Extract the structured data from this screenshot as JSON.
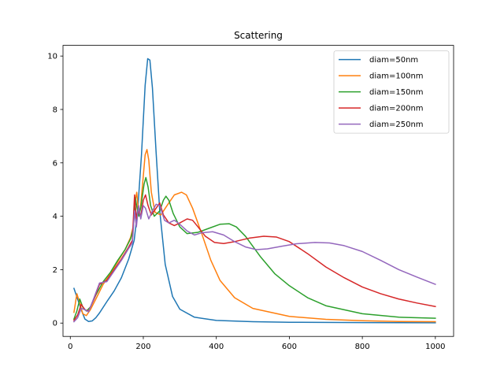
{
  "chart_data": {
    "type": "line",
    "title": "Scattering",
    "xlabel": "",
    "ylabel": "",
    "xlim": [
      -20,
      1050
    ],
    "ylim": [
      -0.5,
      10.4
    ],
    "xticks": [
      0,
      200,
      400,
      600,
      800,
      1000
    ],
    "yticks": [
      0,
      2,
      4,
      6,
      8,
      10
    ],
    "grid": false,
    "legend_position": "top-right",
    "series": [
      {
        "name": "diam=50nm",
        "color": "#1f77b4",
        "points": [
          [
            10,
            1.3
          ],
          [
            20,
            0.9
          ],
          [
            30,
            0.5
          ],
          [
            40,
            0.15
          ],
          [
            50,
            0.06
          ],
          [
            60,
            0.08
          ],
          [
            70,
            0.2
          ],
          [
            80,
            0.38
          ],
          [
            100,
            0.8
          ],
          [
            120,
            1.2
          ],
          [
            140,
            1.7
          ],
          [
            160,
            2.4
          ],
          [
            175,
            3.1
          ],
          [
            185,
            4.3
          ],
          [
            195,
            6.3
          ],
          [
            205,
            8.9
          ],
          [
            212,
            9.9
          ],
          [
            218,
            9.85
          ],
          [
            225,
            8.8
          ],
          [
            235,
            6.4
          ],
          [
            245,
            4.2
          ],
          [
            260,
            2.2
          ],
          [
            280,
            1.0
          ],
          [
            300,
            0.52
          ],
          [
            340,
            0.22
          ],
          [
            400,
            0.1
          ],
          [
            500,
            0.05
          ],
          [
            600,
            0.03
          ],
          [
            800,
            0.02
          ],
          [
            1000,
            0.01
          ]
        ]
      },
      {
        "name": "diam=100nm",
        "color": "#ff7f0e",
        "points": [
          [
            10,
            0.4
          ],
          [
            18,
            1.1
          ],
          [
            26,
            0.75
          ],
          [
            34,
            0.35
          ],
          [
            44,
            0.28
          ],
          [
            55,
            0.5
          ],
          [
            70,
            0.9
          ],
          [
            90,
            1.45
          ],
          [
            110,
            1.85
          ],
          [
            130,
            2.3
          ],
          [
            150,
            2.75
          ],
          [
            165,
            3.2
          ],
          [
            172,
            3.6
          ],
          [
            177,
            4.5
          ],
          [
            182,
            4.9
          ],
          [
            187,
            4.1
          ],
          [
            192,
            4.3
          ],
          [
            198,
            5.2
          ],
          [
            205,
            6.3
          ],
          [
            210,
            6.5
          ],
          [
            215,
            6.1
          ],
          [
            222,
            4.9
          ],
          [
            232,
            4.15
          ],
          [
            248,
            4.05
          ],
          [
            265,
            4.4
          ],
          [
            285,
            4.8
          ],
          [
            305,
            4.9
          ],
          [
            318,
            4.8
          ],
          [
            335,
            4.3
          ],
          [
            360,
            3.35
          ],
          [
            385,
            2.35
          ],
          [
            410,
            1.6
          ],
          [
            450,
            0.95
          ],
          [
            500,
            0.55
          ],
          [
            600,
            0.25
          ],
          [
            700,
            0.14
          ],
          [
            800,
            0.09
          ],
          [
            900,
            0.06
          ],
          [
            1000,
            0.05
          ]
        ]
      },
      {
        "name": "diam=150nm",
        "color": "#2ca02c",
        "points": [
          [
            10,
            0.15
          ],
          [
            18,
            0.45
          ],
          [
            26,
            0.9
          ],
          [
            34,
            0.6
          ],
          [
            44,
            0.45
          ],
          [
            55,
            0.6
          ],
          [
            70,
            1.05
          ],
          [
            90,
            1.55
          ],
          [
            110,
            1.9
          ],
          [
            130,
            2.35
          ],
          [
            150,
            2.75
          ],
          [
            165,
            3.15
          ],
          [
            172,
            3.5
          ],
          [
            178,
            4.7
          ],
          [
            183,
            4.3
          ],
          [
            188,
            4.0
          ],
          [
            194,
            4.4
          ],
          [
            202,
            5.2
          ],
          [
            207,
            5.45
          ],
          [
            213,
            5.1
          ],
          [
            220,
            4.4
          ],
          [
            230,
            4.0
          ],
          [
            245,
            4.2
          ],
          [
            255,
            4.6
          ],
          [
            262,
            4.75
          ],
          [
            270,
            4.6
          ],
          [
            282,
            4.1
          ],
          [
            300,
            3.6
          ],
          [
            320,
            3.35
          ],
          [
            350,
            3.4
          ],
          [
            380,
            3.55
          ],
          [
            410,
            3.7
          ],
          [
            435,
            3.72
          ],
          [
            455,
            3.6
          ],
          [
            480,
            3.25
          ],
          [
            520,
            2.5
          ],
          [
            560,
            1.85
          ],
          [
            600,
            1.4
          ],
          [
            650,
            0.95
          ],
          [
            700,
            0.65
          ],
          [
            800,
            0.35
          ],
          [
            900,
            0.22
          ],
          [
            1000,
            0.18
          ]
        ]
      },
      {
        "name": "diam=200nm",
        "color": "#d62728",
        "points": [
          [
            10,
            0.1
          ],
          [
            20,
            0.3
          ],
          [
            30,
            0.7
          ],
          [
            40,
            0.5
          ],
          [
            50,
            0.45
          ],
          [
            65,
            0.9
          ],
          [
            80,
            1.45
          ],
          [
            100,
            1.6
          ],
          [
            120,
            2.0
          ],
          [
            140,
            2.4
          ],
          [
            160,
            2.85
          ],
          [
            170,
            3.1
          ],
          [
            176,
            4.8
          ],
          [
            181,
            3.9
          ],
          [
            186,
            4.2
          ],
          [
            193,
            4.0
          ],
          [
            200,
            4.6
          ],
          [
            206,
            4.8
          ],
          [
            213,
            4.4
          ],
          [
            222,
            4.05
          ],
          [
            235,
            4.3
          ],
          [
            245,
            4.5
          ],
          [
            255,
            4.05
          ],
          [
            270,
            3.75
          ],
          [
            285,
            3.65
          ],
          [
            300,
            3.75
          ],
          [
            320,
            3.9
          ],
          [
            335,
            3.85
          ],
          [
            350,
            3.6
          ],
          [
            370,
            3.25
          ],
          [
            395,
            3.02
          ],
          [
            420,
            2.98
          ],
          [
            450,
            3.05
          ],
          [
            490,
            3.18
          ],
          [
            530,
            3.25
          ],
          [
            565,
            3.22
          ],
          [
            600,
            3.05
          ],
          [
            650,
            2.6
          ],
          [
            700,
            2.1
          ],
          [
            750,
            1.7
          ],
          [
            800,
            1.35
          ],
          [
            850,
            1.1
          ],
          [
            900,
            0.9
          ],
          [
            950,
            0.75
          ],
          [
            1000,
            0.62
          ]
        ]
      },
      {
        "name": "diam=250nm",
        "color": "#9467bd",
        "points": [
          [
            10,
            0.05
          ],
          [
            20,
            0.2
          ],
          [
            30,
            0.55
          ],
          [
            40,
            0.5
          ],
          [
            50,
            0.42
          ],
          [
            65,
            0.95
          ],
          [
            80,
            1.5
          ],
          [
            100,
            1.55
          ],
          [
            120,
            1.95
          ],
          [
            140,
            2.35
          ],
          [
            160,
            2.8
          ],
          [
            170,
            3.0
          ],
          [
            176,
            4.2
          ],
          [
            181,
            3.6
          ],
          [
            187,
            4.4
          ],
          [
            193,
            3.9
          ],
          [
            200,
            4.4
          ],
          [
            206,
            4.3
          ],
          [
            215,
            3.9
          ],
          [
            225,
            4.2
          ],
          [
            235,
            4.45
          ],
          [
            245,
            4.4
          ],
          [
            258,
            3.85
          ],
          [
            270,
            3.75
          ],
          [
            285,
            3.85
          ],
          [
            300,
            3.7
          ],
          [
            320,
            3.45
          ],
          [
            340,
            3.3
          ],
          [
            360,
            3.38
          ],
          [
            390,
            3.42
          ],
          [
            420,
            3.3
          ],
          [
            450,
            3.05
          ],
          [
            480,
            2.85
          ],
          [
            510,
            2.75
          ],
          [
            540,
            2.78
          ],
          [
            580,
            2.88
          ],
          [
            620,
            2.97
          ],
          [
            670,
            3.02
          ],
          [
            710,
            3.0
          ],
          [
            750,
            2.9
          ],
          [
            800,
            2.68
          ],
          [
            850,
            2.35
          ],
          [
            900,
            2.0
          ],
          [
            950,
            1.72
          ],
          [
            1000,
            1.45
          ]
        ]
      }
    ]
  }
}
